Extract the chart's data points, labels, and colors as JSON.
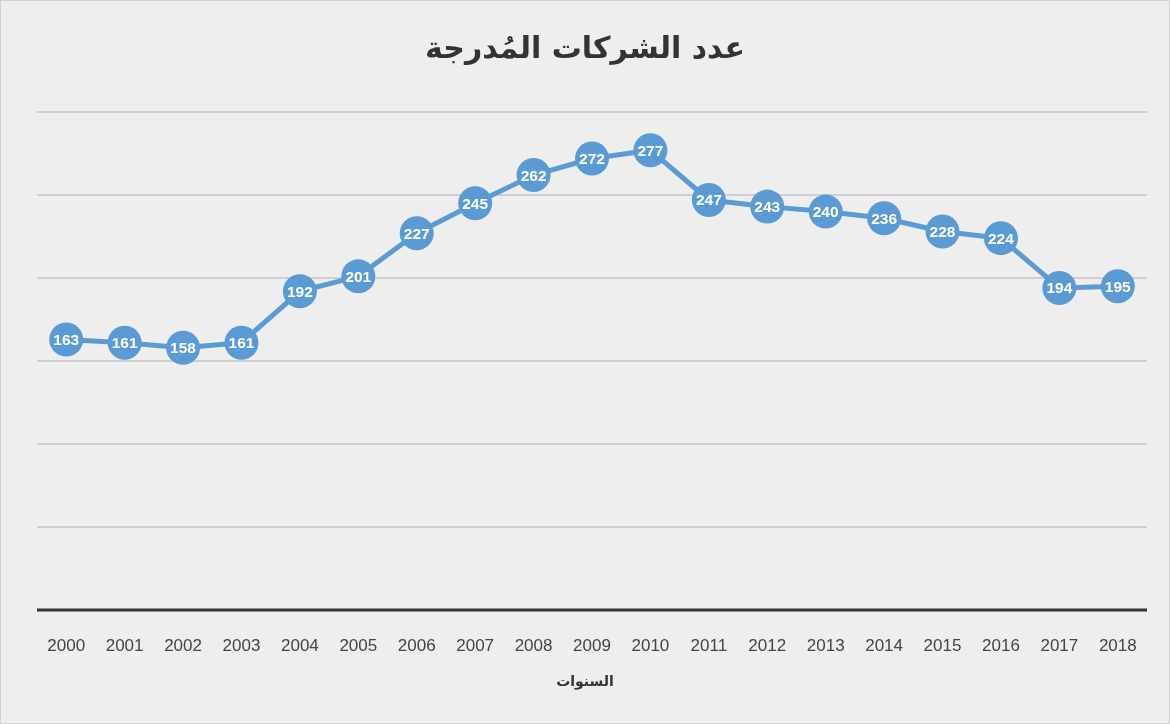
{
  "chart_data": {
    "type": "line",
    "title": "عدد الشركات المُدرجة",
    "xlabel": "السنوات",
    "categories": [
      "2000",
      "2001",
      "2002",
      "2003",
      "2004",
      "2005",
      "2006",
      "2007",
      "2008",
      "2009",
      "2010",
      "2011",
      "2012",
      "2013",
      "2014",
      "2015",
      "2016",
      "2017",
      "2018"
    ],
    "values": [
      163,
      161,
      158,
      161,
      192,
      201,
      227,
      245,
      262,
      272,
      277,
      247,
      243,
      240,
      236,
      228,
      224,
      194,
      195
    ],
    "color": "#5b9bd5",
    "ylim": [
      0,
      300
    ],
    "grid": "y",
    "tick_labels": "x",
    "marker": "circle",
    "line_style": "solid",
    "data_labels": true
  }
}
